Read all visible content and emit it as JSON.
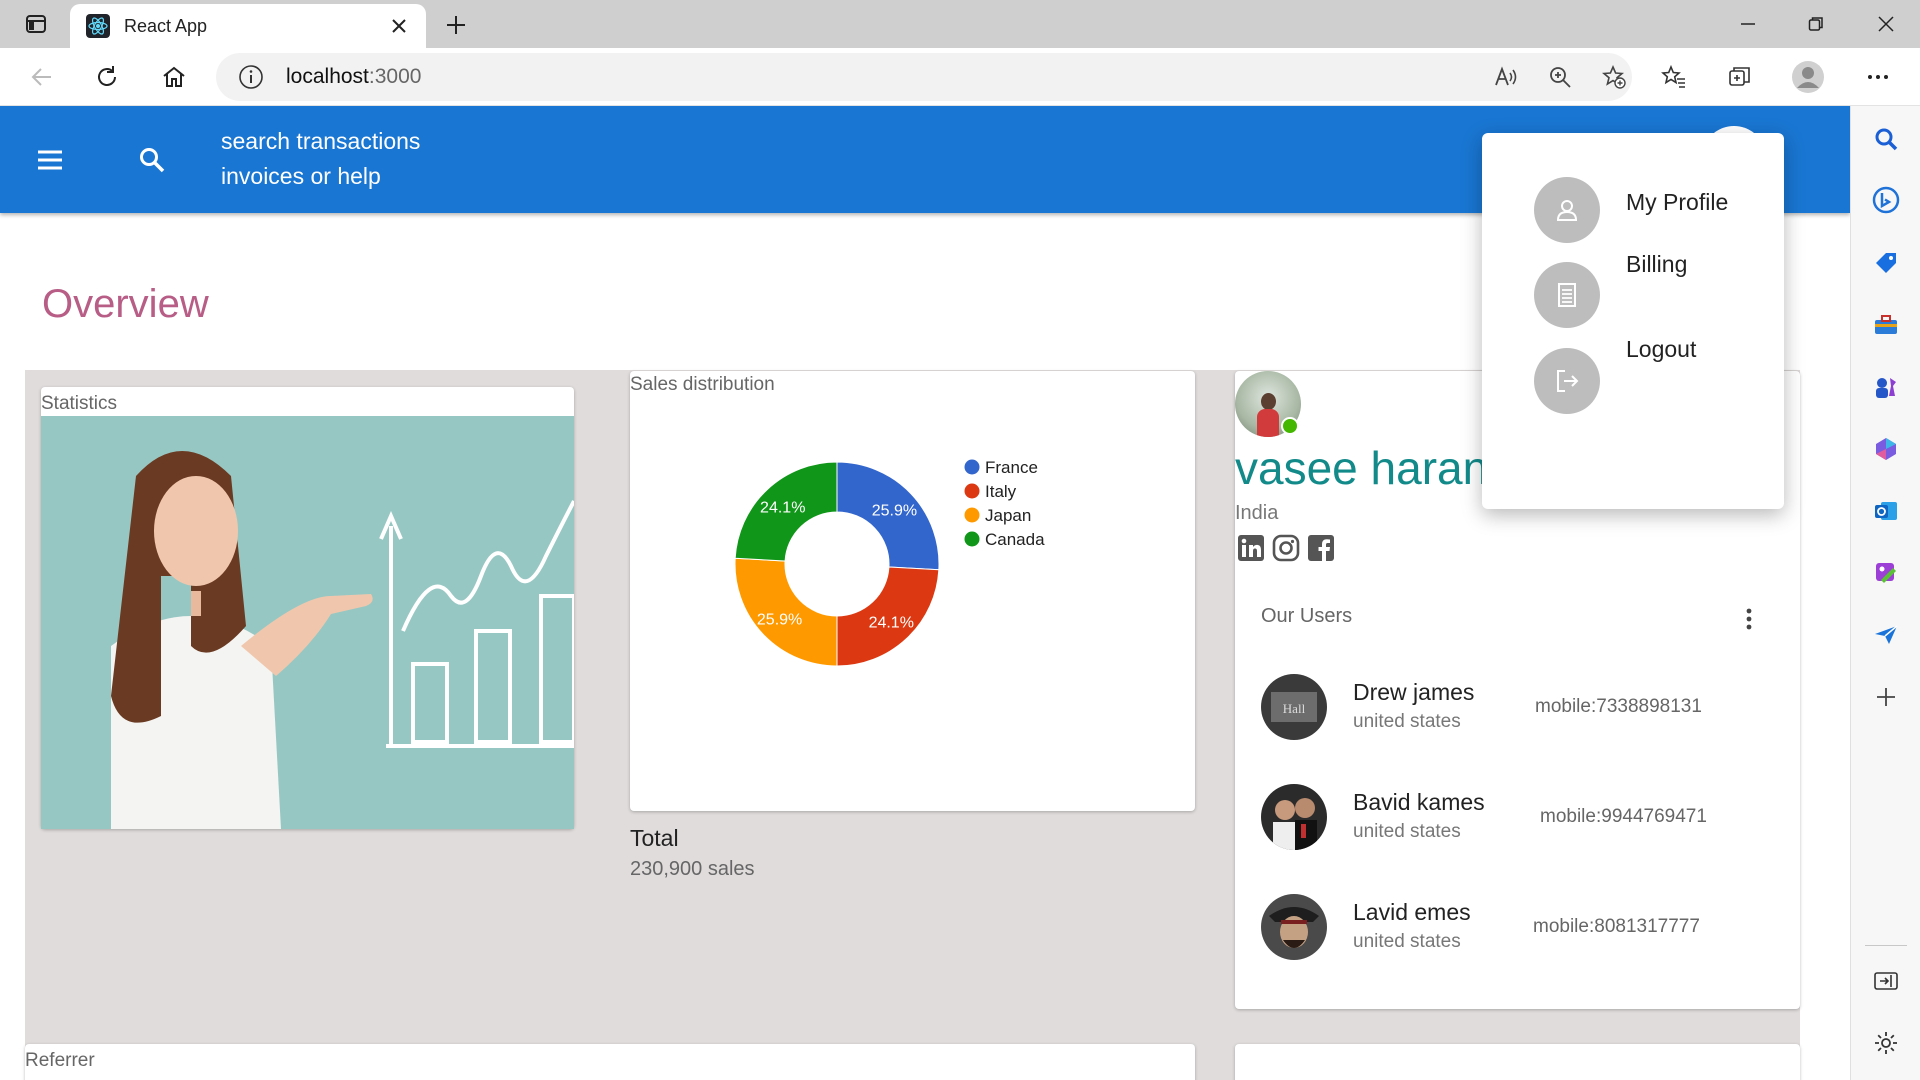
{
  "browser": {
    "tab_title": "React App",
    "url_host": "localhost",
    "url_port": ":3000"
  },
  "app_bar": {
    "search_line1": "search transactions",
    "search_line2": "invoices or help"
  },
  "page": {
    "title": "Overview"
  },
  "statistics": {
    "label": "Statistics"
  },
  "sales": {
    "label": "Sales distribution",
    "total_label": "Total",
    "total_value": "230,900 sales"
  },
  "chart_data": {
    "type": "pie",
    "variant": "donut",
    "title": "Sales distribution",
    "categories": [
      "France",
      "Italy",
      "Japan",
      "Canada"
    ],
    "values": [
      25.9,
      24.1,
      25.9,
      24.1
    ],
    "labels": [
      "25.9%",
      "24.1%",
      "25.9%",
      "24.1%"
    ],
    "colors": [
      "#3366cc",
      "#dc3912",
      "#ff9900",
      "#109618"
    ],
    "legend_position": "right"
  },
  "profile": {
    "name": "vasee haran",
    "country": "India",
    "status_color": "#44b700"
  },
  "users": {
    "title": "Our Users",
    "items": [
      {
        "name": "Drew james",
        "country": "united states",
        "mobile": "mobile:7338898131"
      },
      {
        "name": "Bavid kames",
        "country": "united states",
        "mobile": "mobile:9944769471"
      },
      {
        "name": "Lavid emes",
        "country": "united states",
        "mobile": "mobile:8081317777"
      }
    ]
  },
  "referrer": {
    "label": "Referrer"
  },
  "profile_menu": {
    "items": [
      {
        "label": "My Profile",
        "icon": "person-icon"
      },
      {
        "label": "Billing",
        "icon": "receipt-icon"
      },
      {
        "label": "Logout",
        "icon": "logout-icon"
      }
    ]
  },
  "colors": {
    "app_bar": "#1976d2",
    "title": "#b75d86",
    "profile_name": "#138a8a"
  }
}
